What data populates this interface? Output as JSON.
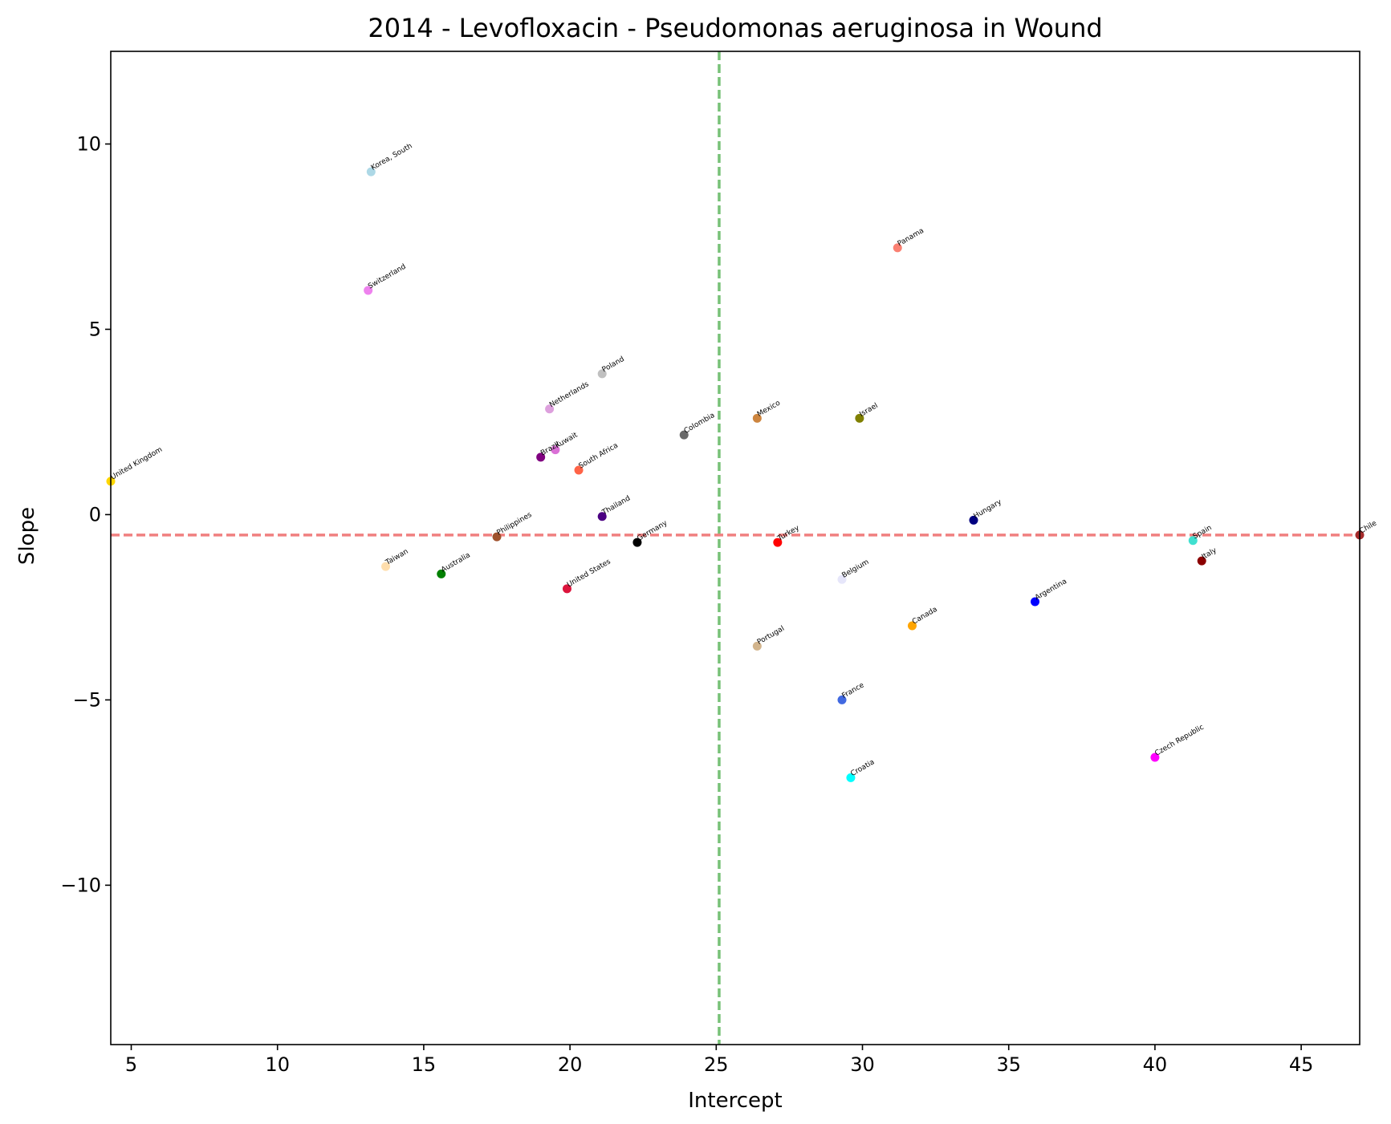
{
  "chart_data": {
    "type": "scatter",
    "title": "2014 - Levofloxacin - Pseudomonas aeruginosa in Wound",
    "xlabel": "Intercept",
    "ylabel": "Slope",
    "xlim": [
      4.3,
      47.0
    ],
    "ylim": [
      -14.3,
      12.5
    ],
    "xticks": [
      5,
      10,
      15,
      20,
      25,
      30,
      35,
      40,
      45
    ],
    "yticks": [
      10,
      5,
      0,
      -5,
      -10
    ],
    "ytick_labels": [
      "10",
      "5",
      "0",
      "−5",
      "−10"
    ],
    "grid": false,
    "reference_lines": {
      "vertical": {
        "x": 25.1,
        "color": "#77c177",
        "style": "dashed"
      },
      "horizontal": {
        "y": -0.55,
        "color": "#f08080",
        "style": "dashed"
      }
    },
    "points": [
      {
        "label": "Korea, South",
        "x": 13.2,
        "y": 9.25,
        "color": "#add8e6"
      },
      {
        "label": "Panama",
        "x": 31.2,
        "y": 7.2,
        "color": "#fa8072"
      },
      {
        "label": "Switzerland",
        "x": 13.1,
        "y": 6.05,
        "color": "#ee82ee"
      },
      {
        "label": "Poland",
        "x": 21.1,
        "y": 3.8,
        "color": "#c0c0c0"
      },
      {
        "label": "Netherlands",
        "x": 19.3,
        "y": 2.85,
        "color": "#dda0dd"
      },
      {
        "label": "Mexico",
        "x": 26.4,
        "y": 2.6,
        "color": "#cd853f"
      },
      {
        "label": "Israel",
        "x": 29.9,
        "y": 2.6,
        "color": "#808000"
      },
      {
        "label": "Colombia",
        "x": 23.9,
        "y": 2.15,
        "color": "#696969"
      },
      {
        "label": "Kuwait",
        "x": 19.5,
        "y": 1.75,
        "color": "#da70d6"
      },
      {
        "label": "Brazil",
        "x": 19.0,
        "y": 1.55,
        "color": "#800080"
      },
      {
        "label": "South Africa",
        "x": 20.3,
        "y": 1.2,
        "color": "#ff6347"
      },
      {
        "label": "United Kingdom",
        "x": 4.3,
        "y": 0.9,
        "color": "#ffd700"
      },
      {
        "label": "Thailand",
        "x": 21.1,
        "y": -0.05,
        "color": "#4b0082"
      },
      {
        "label": "Hungary",
        "x": 33.8,
        "y": -0.15,
        "color": "#000080"
      },
      {
        "label": "Chile",
        "x": 47.0,
        "y": -0.55,
        "color": "#a52a2a"
      },
      {
        "label": "Philippines",
        "x": 17.5,
        "y": -0.6,
        "color": "#a0522d"
      },
      {
        "label": "Spain",
        "x": 41.3,
        "y": -0.7,
        "color": "#40e0d0"
      },
      {
        "label": "Germany",
        "x": 22.3,
        "y": -0.75,
        "color": "#000000"
      },
      {
        "label": "Turkey",
        "x": 27.1,
        "y": -0.75,
        "color": "#ff0000"
      },
      {
        "label": "Italy",
        "x": 41.6,
        "y": -1.25,
        "color": "#8b0000"
      },
      {
        "label": "Taiwan",
        "x": 13.7,
        "y": -1.4,
        "color": "#ffdead"
      },
      {
        "label": "Australia",
        "x": 15.6,
        "y": -1.6,
        "color": "#008000"
      },
      {
        "label": "Belgium",
        "x": 29.3,
        "y": -1.75,
        "color": "#e6e6fa"
      },
      {
        "label": "United States",
        "x": 19.9,
        "y": -2.0,
        "color": "#dc143c"
      },
      {
        "label": "Argentina",
        "x": 35.9,
        "y": -2.35,
        "color": "#0000ff"
      },
      {
        "label": "Canada",
        "x": 31.7,
        "y": -3.0,
        "color": "#ffa500"
      },
      {
        "label": "Portugal",
        "x": 26.4,
        "y": -3.55,
        "color": "#d2b48c"
      },
      {
        "label": "France",
        "x": 29.3,
        "y": -5.0,
        "color": "#4169e1"
      },
      {
        "label": "Czech Republic",
        "x": 40.0,
        "y": -6.55,
        "color": "#ff00ff"
      },
      {
        "label": "Croatia",
        "x": 29.6,
        "y": -7.1,
        "color": "#00ffff"
      }
    ]
  }
}
